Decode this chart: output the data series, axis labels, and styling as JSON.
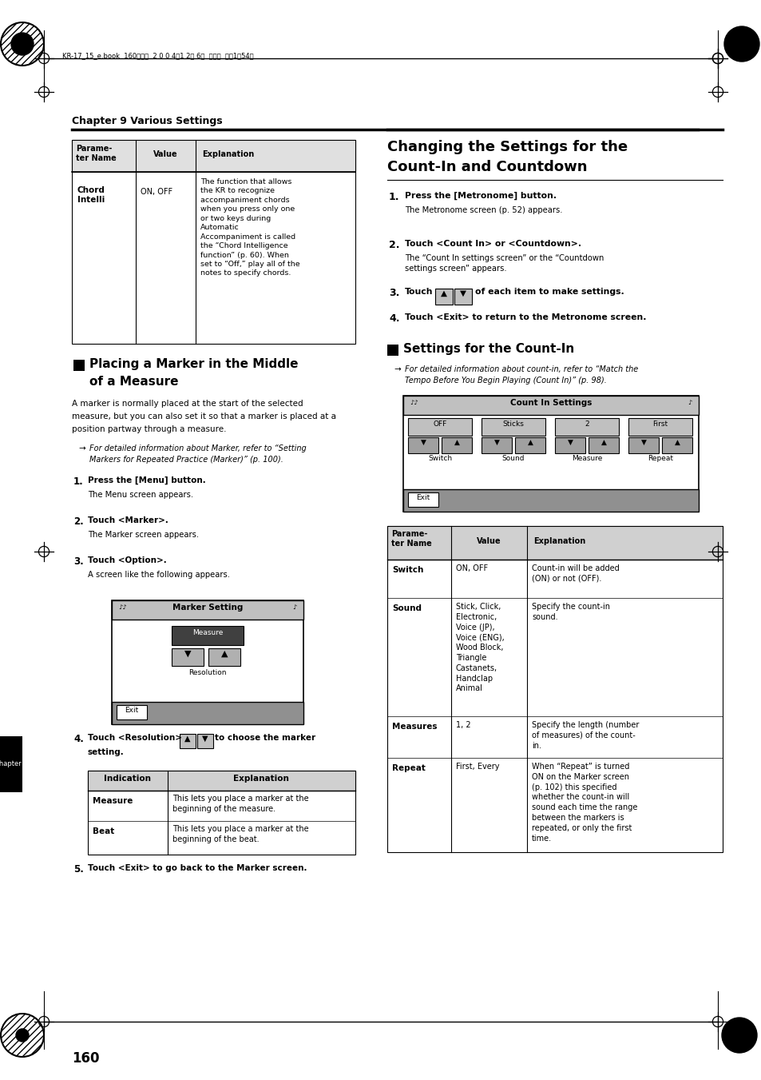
{
  "page_bg": "#ffffff",
  "pw": 954,
  "ph": 1351,
  "top_bar_text": "KR-17_15_e.book  160ページ  2 0 0 4年1 2月 6日  月曜日  午後1時54分",
  "chapter_title": "Chapter 9 Various Settings",
  "page_number": "160"
}
